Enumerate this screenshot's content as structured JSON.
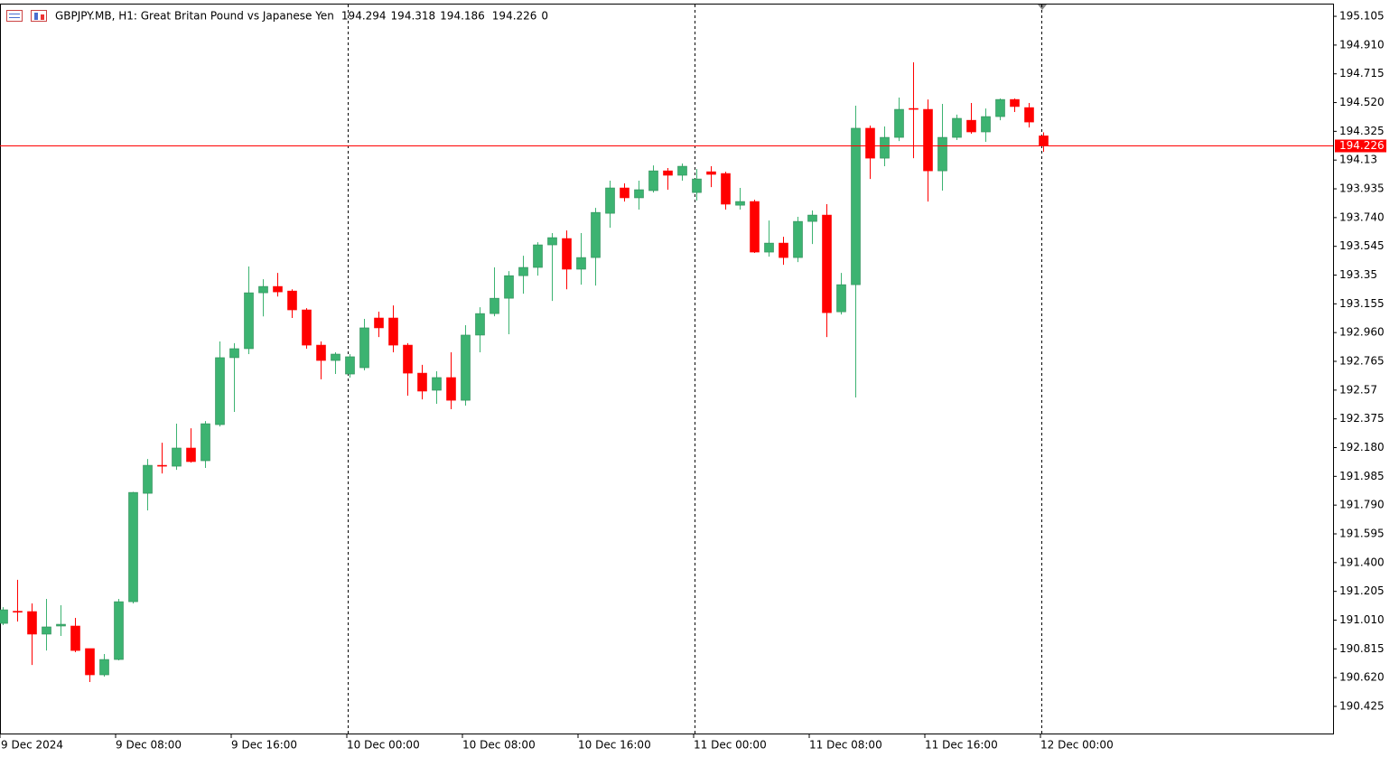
{
  "chart_data": {
    "type": "candlestick",
    "title": "GBPJPY.MB, H1:  Great Britan Pound vs Japanese Yen",
    "header_values": [
      194.294,
      194.318,
      194.186,
      194.226,
      0
    ],
    "categories": [
      "9 Dec 2024",
      null,
      null,
      null,
      null,
      null,
      null,
      null,
      "9 Dec 08:00",
      null,
      null,
      null,
      null,
      null,
      null,
      null,
      "9 Dec 16:00",
      null,
      null,
      null,
      null,
      null,
      null,
      null,
      "10 Dec 00:00",
      null,
      null,
      null,
      null,
      null,
      null,
      null,
      "10 Dec 08:00",
      null,
      null,
      null,
      null,
      null,
      null,
      null,
      "10 Dec 16:00",
      null,
      null,
      null,
      null,
      null,
      null,
      null,
      "11 Dec 00:00",
      null,
      null,
      null,
      null,
      null,
      null,
      null,
      "11 Dec 08:00",
      null,
      null,
      null,
      null,
      null,
      null,
      null,
      "11 Dec 16:00",
      null,
      null,
      null,
      null,
      null,
      null,
      null,
      "12 Dec 00:00"
    ],
    "open": [
      190.988,
      191.07,
      191.068,
      190.915,
      190.97,
      190.97,
      190.817,
      190.639,
      190.743,
      191.135,
      191.87,
      192.06,
      192.054,
      192.177,
      192.091,
      192.336,
      192.79,
      192.851,
      193.23,
      193.273,
      193.242,
      193.114,
      192.875,
      192.771,
      192.679,
      192.722,
      193.059,
      193.059,
      192.875,
      192.685,
      192.569,
      192.655,
      192.501,
      192.943,
      193.089,
      193.193,
      193.346,
      193.402,
      193.555,
      193.598,
      193.39,
      193.469,
      193.769,
      193.941,
      193.874,
      193.923,
      194.057,
      194.027,
      193.91,
      194.051,
      194.039,
      193.824,
      193.849,
      193.506,
      193.567,
      193.469,
      193.714,
      193.757,
      193.101,
      193.285,
      194.346,
      194.143,
      194.284,
      194.48,
      194.474,
      194.057,
      194.284,
      194.4,
      194.321,
      194.425,
      194.541,
      194.486,
      194.294
    ],
    "high": [
      191.098,
      191.283,
      191.123,
      191.154,
      191.111,
      191.025,
      190.817,
      190.78,
      191.154,
      191.88,
      192.103,
      192.213,
      192.342,
      192.311,
      192.36,
      192.9,
      192.888,
      193.408,
      193.322,
      193.365,
      193.254,
      193.126,
      192.9,
      192.826,
      192.814,
      193.053,
      193.102,
      193.144,
      192.888,
      192.741,
      192.698,
      192.826,
      193.01,
      193.132,
      193.402,
      193.377,
      193.481,
      193.573,
      193.635,
      193.653,
      193.635,
      193.806,
      193.99,
      193.972,
      193.99,
      194.094,
      194.076,
      194.107,
      194.07,
      194.088,
      194.051,
      193.941,
      193.861,
      193.72,
      193.61,
      193.745,
      193.788,
      193.831,
      193.365,
      194.499,
      194.364,
      194.358,
      194.554,
      194.793,
      194.541,
      194.511,
      194.438,
      194.517,
      194.48,
      194.548,
      194.548,
      194.517,
      194.318
    ],
    "low": [
      190.976,
      191.001,
      190.706,
      190.804,
      190.903,
      190.792,
      190.59,
      190.627,
      190.737,
      191.123,
      191.754,
      192.005,
      192.029,
      192.078,
      192.042,
      192.323,
      192.422,
      192.814,
      193.07,
      193.205,
      193.059,
      192.851,
      192.643,
      192.679,
      192.655,
      192.704,
      192.93,
      192.826,
      192.532,
      192.507,
      192.477,
      192.44,
      192.465,
      192.826,
      193.071,
      192.949,
      193.224,
      193.346,
      193.175,
      193.254,
      193.285,
      193.279,
      193.671,
      193.849,
      193.794,
      193.91,
      193.929,
      193.99,
      193.855,
      193.947,
      193.794,
      193.794,
      193.5,
      193.475,
      193.42,
      193.438,
      193.561,
      192.93,
      193.083,
      192.52,
      194.002,
      194.088,
      194.259,
      194.143,
      193.849,
      193.923,
      194.266,
      194.309,
      194.254,
      194.4,
      194.456,
      194.351,
      194.186
    ],
    "close": [
      191.08,
      191.066,
      190.915,
      190.964,
      190.982,
      190.804,
      190.639,
      190.743,
      191.135,
      191.876,
      192.06,
      192.054,
      192.177,
      192.085,
      192.342,
      192.79,
      192.851,
      193.23,
      193.273,
      193.236,
      193.114,
      192.875,
      192.771,
      192.814,
      192.796,
      192.992,
      192.992,
      192.875,
      192.685,
      192.563,
      192.655,
      192.501,
      192.943,
      193.089,
      193.193,
      193.346,
      193.402,
      193.555,
      193.604,
      193.39,
      193.469,
      193.775,
      193.941,
      193.874,
      193.929,
      194.057,
      194.027,
      194.088,
      194.002,
      194.033,
      193.831,
      193.849,
      193.506,
      193.567,
      193.469,
      193.714,
      193.757,
      193.095,
      193.285,
      194.346,
      194.143,
      194.284,
      194.474,
      194.474,
      194.057,
      194.284,
      194.413,
      194.321,
      194.425,
      194.541,
      194.493,
      194.388,
      194.226
    ],
    "up_color": "#3cb371",
    "down_color": "#ff0000",
    "last_price": 194.226,
    "last_price_color": "#ff0000",
    "ylim": [
      190.241,
      195.185
    ],
    "yticks": [
      195.105,
      {
        "value": 194.91,
        "label": "194.910"
      },
      194.715,
      {
        "value": 194.52,
        "label": "194.520"
      },
      194.325,
      194.13,
      193.935,
      {
        "value": 193.74,
        "label": "193.740"
      },
      193.545,
      193.35,
      193.155,
      {
        "value": 192.96,
        "label": "192.960"
      },
      192.765,
      192.57,
      192.375,
      {
        "value": 192.18,
        "label": "192.180"
      },
      191.985,
      {
        "value": 191.79,
        "label": "191.790"
      },
      191.595,
      {
        "value": 191.4,
        "label": "191.400"
      },
      191.205,
      {
        "value": 191.01,
        "label": "191.010"
      },
      190.815,
      {
        "value": 190.62,
        "label": "190.620"
      },
      190.425
    ]
  }
}
